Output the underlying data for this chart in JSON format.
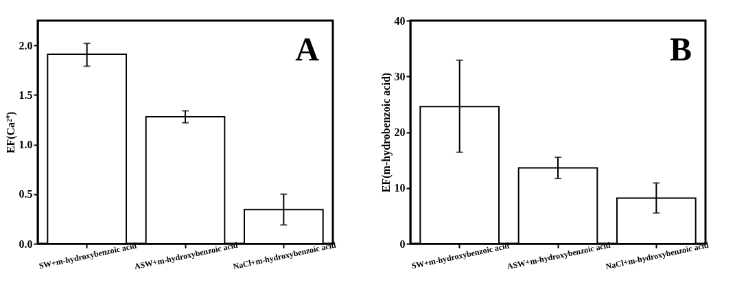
{
  "chart_data": [
    {
      "type": "bar",
      "categories": [
        "SW+m-hydroxybenzoic acid",
        "ASW+m-hydroxybenzoic acid",
        "NaCl+m-hydroxybenzoic acid"
      ],
      "values": [
        1.91,
        1.28,
        0.345
      ],
      "errors": [
        [
          1.79,
          2.02
        ],
        [
          1.22,
          1.34
        ],
        [
          0.19,
          0.5
        ]
      ],
      "color": "#ffffff",
      "ylabel": "EF(Ca²⁺)",
      "ylim": [
        0,
        2.25
      ],
      "yticks": [
        {
          "value": 0,
          "label": "0.0"
        },
        0.5,
        {
          "value": 1,
          "label": "1.0"
        },
        1.5,
        {
          "value": 2,
          "label": "2.0"
        }
      ],
      "grid": false,
      "annotations": [
        "A"
      ]
    },
    {
      "type": "bar",
      "categories": [
        "SW+m-hydroxybenzoic acid",
        "ASW+m-hydroxybenzoic acid",
        "NaCl+m-hydroxybenzoic acid"
      ],
      "values": [
        24.6,
        13.6,
        8.2
      ],
      "errors": [
        [
          16.4,
          32.9
        ],
        [
          11.7,
          15.5
        ],
        [
          5.5,
          10.9
        ]
      ],
      "color": "#ffffff",
      "ylabel": "EF(m-hydrobenzoic acid)",
      "ylim": [
        0,
        40
      ],
      "yticks": [
        0,
        10,
        20,
        30,
        40
      ],
      "grid": false,
      "annotations": [
        "B"
      ]
    }
  ]
}
